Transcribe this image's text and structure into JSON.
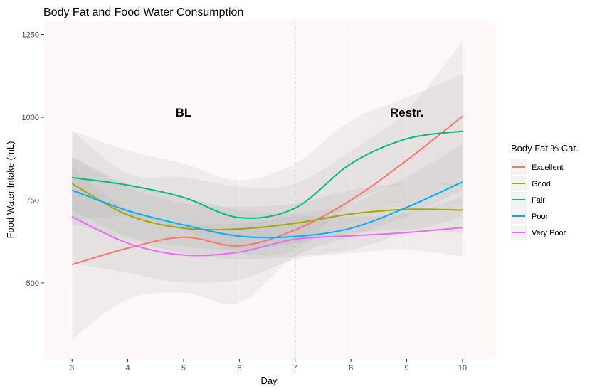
{
  "chart_data": {
    "type": "line",
    "title": "Body Fat and Food Water Consumption",
    "xlabel": "Day",
    "ylabel": "Food Water Intake (mL)",
    "xlim": [
      2.5,
      10.6
    ],
    "ylim": [
      270,
      1290
    ],
    "x_ticks": [
      3,
      4,
      5,
      6,
      7,
      8,
      9,
      10
    ],
    "y_ticks": [
      500,
      750,
      1000,
      1250
    ],
    "grid": true,
    "legend_position": "right",
    "legend_title": "Body Fat % Cat.",
    "vline": {
      "x": 7,
      "style": "dashed"
    },
    "annotations": [
      {
        "text": "BL",
        "x": 5,
        "y": 1015
      },
      {
        "text": "Restr.",
        "x": 9,
        "y": 1015
      }
    ],
    "x": [
      3,
      4,
      5,
      6,
      7,
      8,
      9,
      10
    ],
    "series": [
      {
        "name": "Excellent",
        "color": "#F8766D",
        "values": [
          555,
          605,
          638,
          612,
          660,
          750,
          870,
          1003
        ],
        "ci_low": [
          330,
          450,
          470,
          440,
          580,
          640,
          700,
          780
        ],
        "ci_high": [
          960,
          830,
          820,
          790,
          800,
          900,
          1020,
          1230
        ]
      },
      {
        "name": "Good",
        "color": "#A3A500",
        "values": [
          800,
          705,
          665,
          663,
          680,
          708,
          722,
          720
        ],
        "ci_low": [
          720,
          640,
          610,
          600,
          620,
          650,
          660,
          650
        ],
        "ci_high": [
          880,
          790,
          740,
          730,
          740,
          780,
          800,
          800
        ]
      },
      {
        "name": "Fair",
        "color": "#00BF7D",
        "values": [
          818,
          795,
          758,
          697,
          726,
          860,
          935,
          958
        ],
        "ci_low": [
          690,
          700,
          660,
          590,
          600,
          740,
          800,
          790
        ],
        "ci_high": [
          960,
          900,
          860,
          810,
          860,
          990,
          1060,
          1130
        ]
      },
      {
        "name": "Poor",
        "color": "#00B0F6",
        "values": [
          780,
          718,
          675,
          641,
          640,
          665,
          728,
          805
        ],
        "ci_low": [
          680,
          630,
          590,
          570,
          580,
          600,
          650,
          700
        ],
        "ci_high": [
          880,
          800,
          760,
          720,
          710,
          740,
          820,
          920
        ]
      },
      {
        "name": "Very Poor",
        "color": "#E76BF3",
        "values": [
          700,
          620,
          584,
          593,
          632,
          642,
          652,
          667
        ],
        "ci_low": [
          560,
          530,
          500,
          510,
          570,
          590,
          600,
          580
        ],
        "ci_high": [
          850,
          720,
          680,
          680,
          700,
          700,
          710,
          760
        ]
      }
    ]
  }
}
